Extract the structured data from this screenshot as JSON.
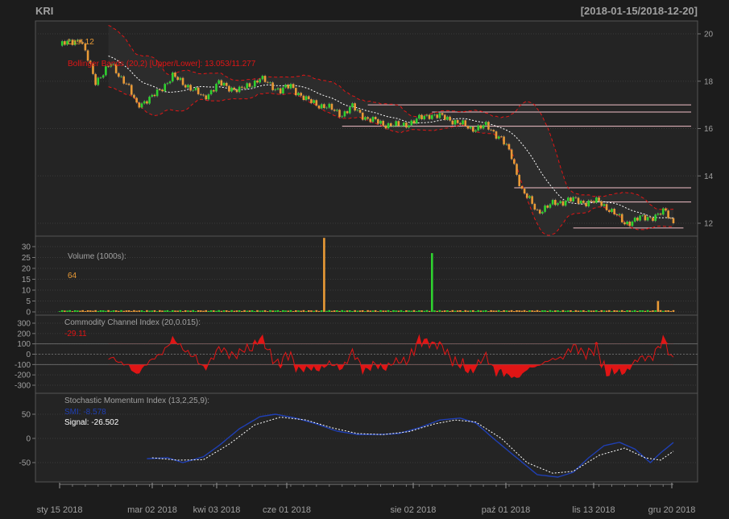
{
  "header": {
    "symbol": "KRI",
    "date_range": "[2018-01-15/2018-12-20]"
  },
  "colors": {
    "background": "#1c1c1c",
    "panel": "#242424",
    "up": "#2fd12f",
    "down": "#e99a36",
    "bbands": "#e01515",
    "sma": "#ffffff",
    "cci": "#e01515",
    "smi": "#1f3fb4",
    "signal": "#ffffff",
    "text": "#a0a0a0",
    "hlines": "#f2c0c8"
  },
  "chart_data": [
    {
      "type": "candlestick",
      "legend_last": "Last 12",
      "legend_bbands": "Bollinger Bands (20,2) [Upper/Lower]: 13.053/11.277",
      "y_ticks": [
        "12",
        "14",
        "16",
        "18",
        "20"
      ],
      "ylim": [
        11.5,
        20.4
      ],
      "last": 12,
      "bb_upper_last": 13.053,
      "bb_lower_last": 11.277,
      "support_resistance": [
        17.0,
        16.7,
        16.1,
        13.5,
        12.9,
        11.8
      ]
    },
    {
      "type": "bar",
      "legend": "Volume (1000s):",
      "last_value": "64",
      "y_ticks": [
        "0",
        "5",
        "10",
        "15",
        "20",
        "25",
        "30"
      ],
      "ylim": [
        0,
        33
      ],
      "spikes": [
        {
          "date": "2018-05-29",
          "value": 34,
          "dir": "down"
        },
        {
          "date": "2018-07-27",
          "value": 27,
          "dir": "up"
        },
        {
          "date": "2018-12-18",
          "value": 5,
          "dir": "down"
        }
      ]
    },
    {
      "type": "line",
      "legend": "Commodity Channel Index (20,0.015):",
      "last_value": "-29.11",
      "y_ticks": [
        "300",
        "200",
        "100",
        "0",
        "-100",
        "-200",
        "-300"
      ],
      "ylim": [
        -330,
        330
      ],
      "levels": [
        100,
        -100
      ]
    },
    {
      "type": "line",
      "legend": "Stochastic Momentum Index (13,2,25,9):",
      "smi_label": "SMI: -8.578",
      "signal_label": "Signal: -26.502",
      "y_ticks": [
        "50",
        "0",
        "-50"
      ],
      "ylim": [
        -85,
        65
      ]
    }
  ],
  "x_axis": {
    "tick_labels": [
      "sty 15 2018",
      "mar 02 2018",
      "kwi 03 2018",
      "cze 01 2018",
      "sie 02 2018",
      "paź 01 2018",
      "lis 13 2018",
      "gru 20 2018"
    ]
  }
}
